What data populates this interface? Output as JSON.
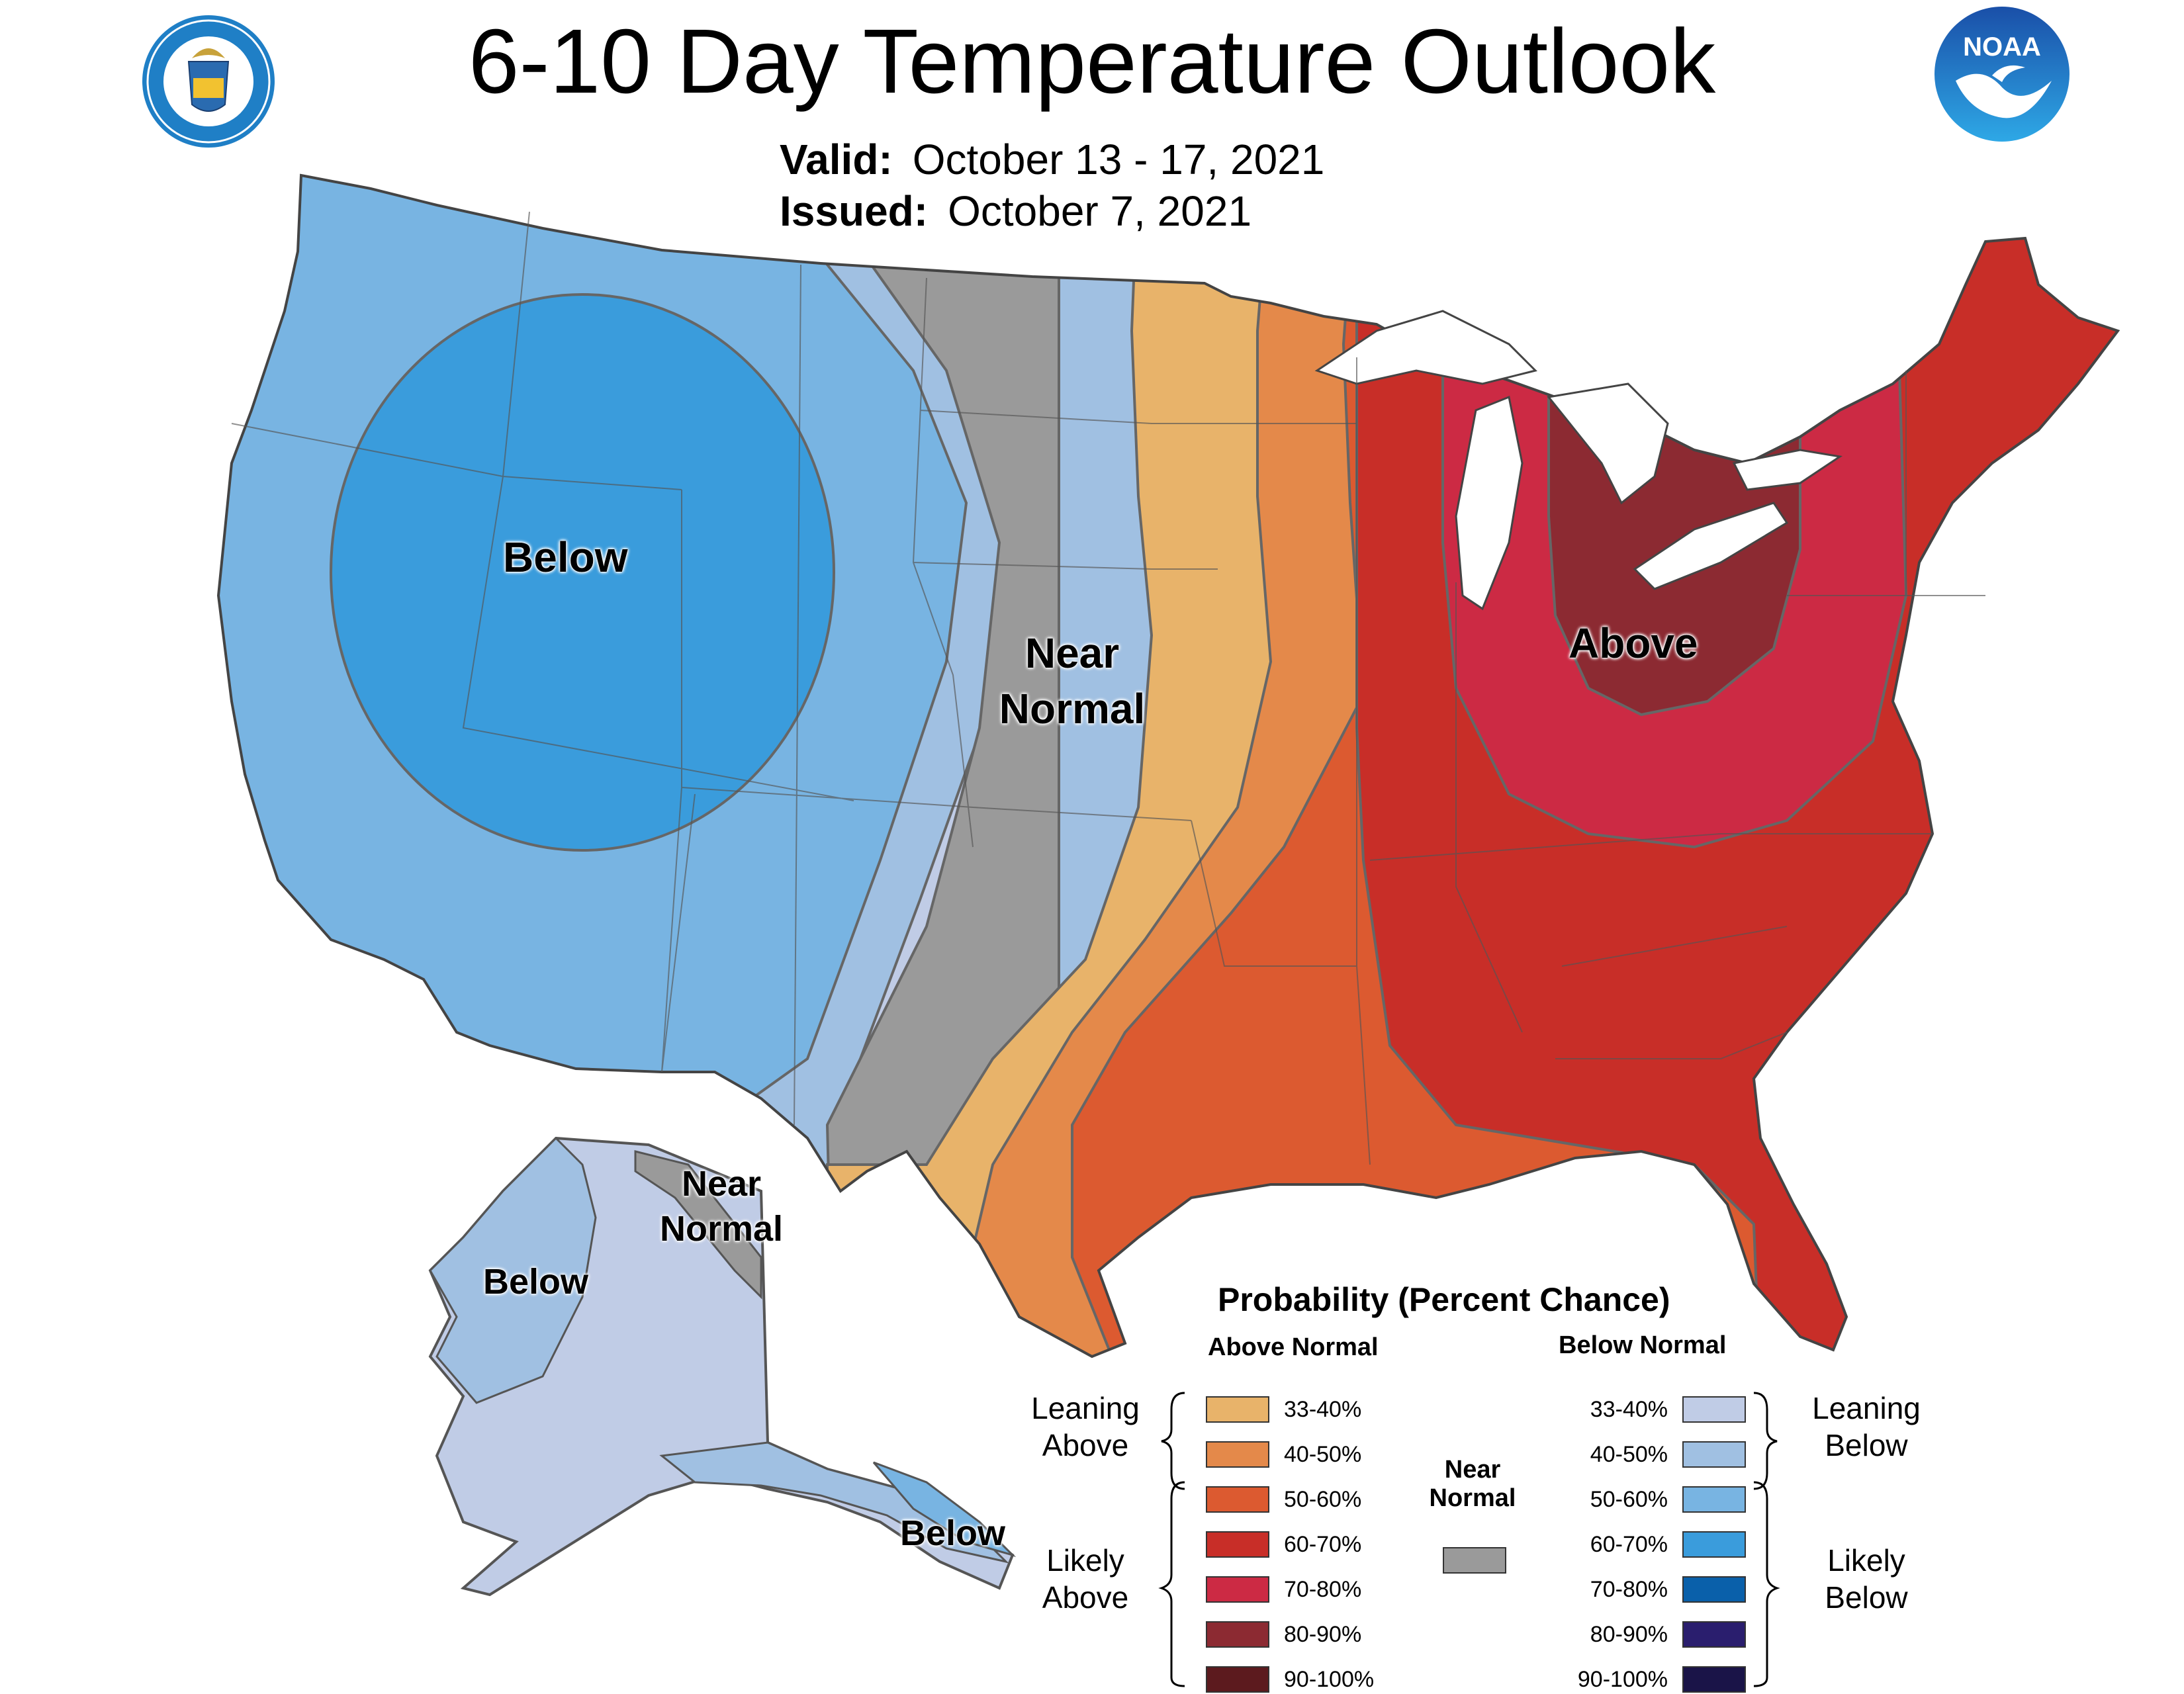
{
  "header": {
    "title": "6-10 Day Temperature Outlook",
    "valid_label": "Valid:",
    "valid_value": "October 13 - 17, 2021",
    "issued_label": "Issued:",
    "issued_value": "October 7, 2021"
  },
  "logos": {
    "left": "Department of Commerce seal",
    "right": "NOAA logo",
    "right_text": "NOAA"
  },
  "map_labels": {
    "west": "Below",
    "plains_line1": "Near",
    "plains_line2": "Normal",
    "east": "Above",
    "alaska_west": "Below",
    "alaska_ne_line1": "Near",
    "alaska_ne_line2": "Normal",
    "alaska_south": "Below"
  },
  "legend": {
    "title": "Probability (Percent Chance)",
    "above_header": "Above Normal",
    "below_header": "Below Normal",
    "near_label_line1": "Near",
    "near_label_line2": "Normal",
    "leaning_above": [
      "Leaning",
      "Above"
    ],
    "likely_above": [
      "Likely",
      "Above"
    ],
    "leaning_below": [
      "Leaning",
      "Below"
    ],
    "likely_below": [
      "Likely",
      "Below"
    ],
    "above": [
      {
        "range": "33-40%",
        "color": "#E8B36A"
      },
      {
        "range": "40-50%",
        "color": "#E4894A"
      },
      {
        "range": "50-60%",
        "color": "#DC5A30"
      },
      {
        "range": "60-70%",
        "color": "#C82E28"
      },
      {
        "range": "70-80%",
        "color": "#CC2A44"
      },
      {
        "range": "80-90%",
        "color": "#8C2A32"
      },
      {
        "range": "90-100%",
        "color": "#5C1A1E"
      }
    ],
    "below": [
      {
        "range": "33-40%",
        "color": "#C0CCE6"
      },
      {
        "range": "40-50%",
        "color": "#A0C0E2"
      },
      {
        "range": "50-60%",
        "color": "#78B4E2"
      },
      {
        "range": "60-70%",
        "color": "#3A9CDC"
      },
      {
        "range": "70-80%",
        "color": "#0A60AA"
      },
      {
        "range": "80-90%",
        "color": "#2A1E6E"
      },
      {
        "range": "90-100%",
        "color": "#1A1448"
      }
    ],
    "near_color": "#9A9A9A"
  }
}
